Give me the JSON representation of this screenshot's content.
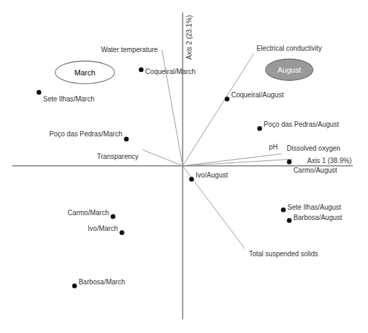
{
  "chart_data": {
    "type": "scatter",
    "x_label": "Axis 1 (38.9%)",
    "y_label": "Axis 2 (23.1%)",
    "xlim": [
      -1.15,
      1.15
    ],
    "ylim": [
      -1.15,
      1.15
    ],
    "tick_labels": false,
    "samples": {
      "color": "#111111",
      "points": [
        {
          "label": "Coqueiral/March",
          "x": -0.28,
          "y": 0.72
        },
        {
          "label": "Sete Ilhas/March",
          "x": -0.97,
          "y": 0.55
        },
        {
          "label": "Poço das Pedras/March",
          "x": -0.38,
          "y": 0.2
        },
        {
          "label": "Carmo/March",
          "x": -0.47,
          "y": -0.38
        },
        {
          "label": "Ivo/March",
          "x": -0.41,
          "y": -0.5
        },
        {
          "label": "Barbosa/March",
          "x": -0.73,
          "y": -0.9
        },
        {
          "label": "Coqueiral/August",
          "x": 0.3,
          "y": 0.5
        },
        {
          "label": "Poço das Pedras/August",
          "x": 0.52,
          "y": 0.28
        },
        {
          "label": "Carmo/August",
          "x": 0.72,
          "y": 0.03
        },
        {
          "label": "Ivo/August",
          "x": 0.06,
          "y": -0.1
        },
        {
          "label": "Sete Ilhas/August",
          "x": 0.68,
          "y": -0.33
        },
        {
          "label": "Barbosa/August",
          "x": 0.72,
          "y": -0.41
        }
      ]
    },
    "vectors": {
      "color": "#999999",
      "points": [
        {
          "label": "Water temperature",
          "x": -0.14,
          "y": 0.87
        },
        {
          "label": "Transparency",
          "x": -0.27,
          "y": 0.12
        },
        {
          "label": "Electrical conductivity",
          "x": 0.48,
          "y": 0.84
        },
        {
          "label": "pH",
          "x": 0.67,
          "y": 0.09
        },
        {
          "label": "Dissolved oxygen",
          "x": 0.74,
          "y": 0.05
        },
        {
          "label": "Total suspended solids",
          "x": 0.42,
          "y": -0.62
        }
      ]
    },
    "ellipses": [
      {
        "label": "March",
        "cx": -0.66,
        "cy": 0.7,
        "width": 0.4,
        "height": 0.17,
        "color": "white"
      },
      {
        "label": "August",
        "cx": 0.72,
        "cy": 0.72,
        "width": 0.32,
        "height": 0.16,
        "color": "#999999"
      }
    ]
  }
}
